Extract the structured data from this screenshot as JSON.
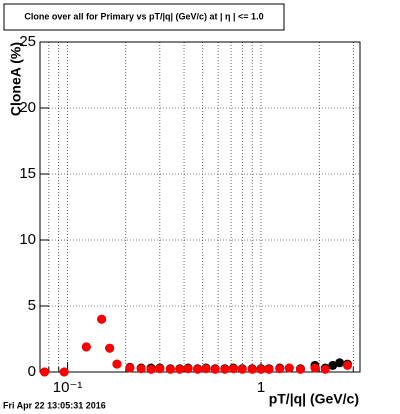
{
  "chart_data": {
    "type": "scatter",
    "title": "Clone  over all for Primary vs pT/|q| (GeV/c) at |  η | <= 1.0",
    "x_label": "pT/|q| (GeV/c)",
    "y_label": "CloneA (%)",
    "annotation": "Fri Apr 22 13:05:31 2016",
    "log_x": true,
    "grid": true,
    "xlim": [
      0.072,
      3.25
    ],
    "ylim": [
      0,
      25
    ],
    "xticks": [
      {
        "value": 0.1,
        "label": "10⁻¹"
      },
      1
    ],
    "xminor": [
      0.08,
      0.09,
      0.2,
      0.3,
      0.4,
      0.5,
      0.6,
      0.7,
      0.8,
      0.9,
      2,
      3
    ],
    "yticks": [
      0,
      5,
      10,
      15,
      20,
      25
    ],
    "x": [
      0.076,
      0.096,
      0.125,
      0.15,
      0.165,
      0.18,
      0.21,
      0.24,
      0.27,
      0.3,
      0.34,
      0.38,
      0.42,
      0.47,
      0.52,
      0.58,
      0.65,
      0.72,
      0.8,
      0.9,
      1.0,
      1.1,
      1.25,
      1.4,
      1.6,
      1.9,
      2.15,
      2.35,
      2.55,
      2.8
    ],
    "series": [
      {
        "color": "#000000",
        "values": [
          0,
          0,
          1.9,
          4.0,
          1.8,
          0.6,
          0.35,
          0.3,
          0.3,
          0.3,
          0.25,
          0.25,
          0.3,
          0.25,
          0.3,
          0.25,
          0.25,
          0.3,
          0.25,
          0.25,
          0.25,
          0.25,
          0.3,
          0.3,
          0.25,
          0.5,
          0.3,
          0.5,
          0.7,
          0.6
        ]
      },
      {
        "color": "#ff0000",
        "values": [
          0,
          0,
          1.9,
          4.0,
          1.8,
          0.6,
          0.3,
          0.25,
          0.2,
          0.25,
          0.2,
          0.2,
          0.25,
          0.2,
          0.25,
          0.2,
          0.2,
          0.25,
          0.2,
          0.2,
          0.2,
          0.2,
          0.25,
          0.3,
          0.2,
          0.3,
          0.2,
          null,
          null,
          0.5
        ]
      }
    ]
  }
}
